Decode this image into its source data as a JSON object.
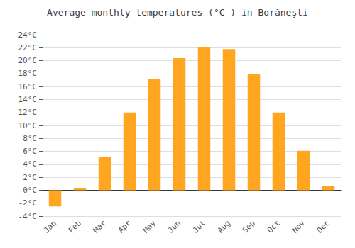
{
  "chart_data": {
    "type": "bar",
    "title": "Average monthly temperatures (°C ) in Borăneşti",
    "categories": [
      "Jan",
      "Feb",
      "Mar",
      "Apr",
      "May",
      "Jun",
      "Jul",
      "Aug",
      "Sep",
      "Oct",
      "Nov",
      "Dec"
    ],
    "values": [
      -2.5,
      0.3,
      5.2,
      12.0,
      17.2,
      20.4,
      22.1,
      21.8,
      17.9,
      12.0,
      6.1,
      0.7
    ],
    "color": "#FFA520",
    "ylim": [
      -4,
      25
    ],
    "yticks": [
      {
        "value": -4,
        "label": "-4°C"
      },
      {
        "value": -2,
        "label": "-2°C"
      },
      {
        "value": 0,
        "label": "0°C"
      },
      {
        "value": 2,
        "label": "2°C"
      },
      {
        "value": 4,
        "label": "4°C"
      },
      {
        "value": 6,
        "label": "6°C"
      },
      {
        "value": 8,
        "label": "8°C"
      },
      {
        "value": 10,
        "label": "10°C"
      },
      {
        "value": 12,
        "label": "12°C"
      },
      {
        "value": 14,
        "label": "14°C"
      },
      {
        "value": 16,
        "label": "16°C"
      },
      {
        "value": 18,
        "label": "18°C"
      },
      {
        "value": 20,
        "label": "20°C"
      },
      {
        "value": 22,
        "label": "22°C"
      },
      {
        "value": 24,
        "label": "24°C"
      }
    ],
    "grid": true
  }
}
